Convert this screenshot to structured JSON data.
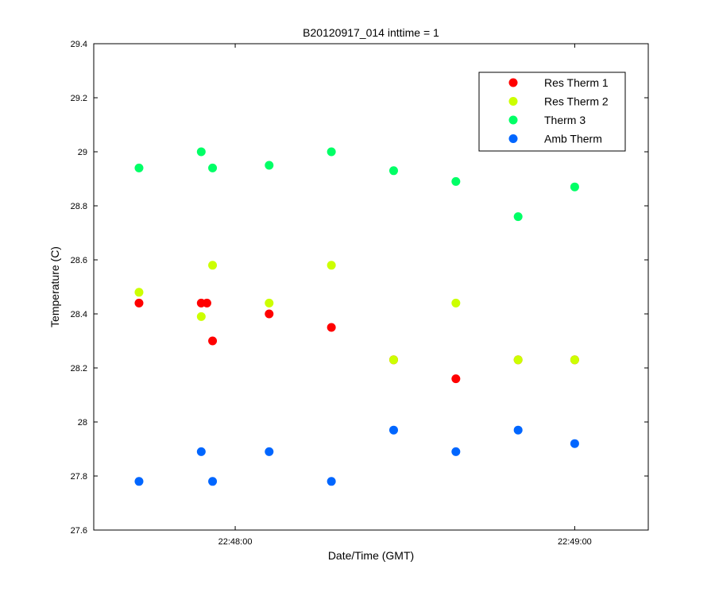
{
  "chart_data": {
    "type": "scatter",
    "title": "B20120917_014 inttime = 1",
    "xlabel": "Date/Time (GMT)",
    "ylabel": "Temperature (C)",
    "xlim": [
      "22:47:35",
      "22:49:13"
    ],
    "ylim": [
      27.6,
      29.4
    ],
    "x_ticks": [
      "22:48:00",
      "22:49:00"
    ],
    "y_ticks": [
      "27.6",
      "27.8",
      "28",
      "28.2",
      "28.4",
      "28.6",
      "28.8",
      "29",
      "29.2",
      "29.4"
    ],
    "grid": false,
    "legend_position": "top-right",
    "series": [
      {
        "name": "Res Therm 1",
        "color": "#ff0000",
        "points": [
          {
            "x": "22:47:43",
            "y": 28.44
          },
          {
            "x": "22:47:54",
            "y": 28.44
          },
          {
            "x": "22:47:55",
            "y": 28.44
          },
          {
            "x": "22:47:56",
            "y": 28.3
          },
          {
            "x": "22:48:06",
            "y": 28.4
          },
          {
            "x": "22:48:17",
            "y": 28.35
          },
          {
            "x": "22:48:28",
            "y": 28.23
          },
          {
            "x": "22:48:39",
            "y": 28.16
          },
          {
            "x": "22:48:50",
            "y": 28.23
          },
          {
            "x": "22:49:00",
            "y": 28.23
          }
        ]
      },
      {
        "name": "Res Therm 2",
        "color": "#ccff00",
        "points": [
          {
            "x": "22:47:43",
            "y": 28.48
          },
          {
            "x": "22:47:54",
            "y": 28.39
          },
          {
            "x": "22:47:56",
            "y": 28.58
          },
          {
            "x": "22:48:06",
            "y": 28.44
          },
          {
            "x": "22:48:17",
            "y": 28.58
          },
          {
            "x": "22:48:28",
            "y": 28.23
          },
          {
            "x": "22:48:39",
            "y": 28.44
          },
          {
            "x": "22:48:50",
            "y": 28.23
          },
          {
            "x": "22:49:00",
            "y": 28.23
          }
        ]
      },
      {
        "name": "Therm 3",
        "color": "#00ff66",
        "points": [
          {
            "x": "22:47:43",
            "y": 28.94
          },
          {
            "x": "22:47:54",
            "y": 29.0
          },
          {
            "x": "22:47:56",
            "y": 28.94
          },
          {
            "x": "22:48:06",
            "y": 28.95
          },
          {
            "x": "22:48:17",
            "y": 29.0
          },
          {
            "x": "22:48:28",
            "y": 28.93
          },
          {
            "x": "22:48:39",
            "y": 28.89
          },
          {
            "x": "22:48:50",
            "y": 28.76
          },
          {
            "x": "22:49:00",
            "y": 28.87
          }
        ]
      },
      {
        "name": "Amb Therm",
        "color": "#0066ff",
        "points": [
          {
            "x": "22:47:43",
            "y": 27.78
          },
          {
            "x": "22:47:54",
            "y": 27.89
          },
          {
            "x": "22:47:56",
            "y": 27.78
          },
          {
            "x": "22:48:06",
            "y": 27.89
          },
          {
            "x": "22:48:17",
            "y": 27.78
          },
          {
            "x": "22:48:28",
            "y": 27.97
          },
          {
            "x": "22:48:39",
            "y": 27.89
          },
          {
            "x": "22:48:50",
            "y": 27.97
          },
          {
            "x": "22:49:00",
            "y": 27.92
          }
        ]
      }
    ]
  }
}
